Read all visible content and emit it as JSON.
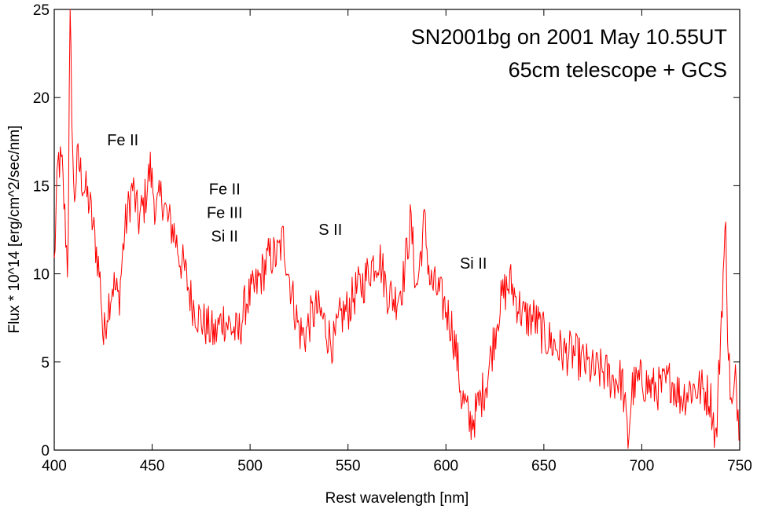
{
  "chart_data": {
    "type": "line",
    "title_lines": [
      "SN2001bg on 2001 May 10.55UT",
      "65cm telescope + GCS"
    ],
    "xlabel": "Rest wavelength [nm]",
    "ylabel": "Flux * 10^14 [erg/cm^2/sec/nm]",
    "xlim": [
      400,
      750
    ],
    "ylim": [
      0,
      25
    ],
    "xticks": [
      400,
      450,
      500,
      550,
      600,
      650,
      700,
      750
    ],
    "yticks": [
      0,
      5,
      10,
      15,
      20,
      25
    ],
    "grid": false,
    "line_color": "#ff0000",
    "annotations": [
      {
        "lines": [
          "Fe II"
        ],
        "x": 435,
        "y": 17.3
      },
      {
        "lines": [
          "Fe II",
          "Fe III",
          "Si  II"
        ],
        "x": 487,
        "y": 14.5
      },
      {
        "lines": [
          "S II"
        ],
        "x": 541,
        "y": 12.2
      },
      {
        "lines": [
          "Si II"
        ],
        "x": 614,
        "y": 10.3
      }
    ],
    "series": [
      {
        "x": [
          400,
          402,
          404,
          406,
          407,
          408,
          410,
          412,
          415,
          418,
          420,
          422,
          424,
          425,
          427,
          430,
          433,
          436,
          440,
          443,
          446,
          449,
          452,
          455,
          458,
          461,
          464,
          467,
          470,
          474,
          478,
          482,
          486,
          490,
          494,
          498,
          502,
          506,
          510,
          514,
          517,
          519,
          522,
          525,
          528,
          531,
          534,
          537,
          540,
          543,
          546,
          550,
          554,
          558,
          562,
          566,
          570,
          574,
          578,
          582,
          585,
          589,
          592,
          596,
          600,
          603,
          606,
          608,
          610,
          612,
          615,
          618,
          621,
          624,
          627,
          630,
          633,
          636,
          640,
          645,
          650,
          655,
          660,
          665,
          670,
          675,
          680,
          685,
          690,
          693,
          695,
          700,
          705,
          710,
          715,
          720,
          725,
          730,
          735,
          738,
          740,
          742,
          743,
          744,
          746,
          748,
          750
        ],
        "y": [
          10.5,
          16.5,
          16.0,
          12.0,
          10.0,
          25.0,
          14.0,
          16.5,
          15.0,
          14.0,
          12.5,
          11.0,
          9.0,
          6.0,
          8.0,
          9.5,
          8.5,
          12.5,
          15.0,
          13.0,
          14.0,
          16.0,
          13.5,
          14.5,
          13.0,
          12.5,
          11.0,
          10.0,
          8.5,
          7.5,
          7.0,
          6.5,
          7.5,
          7.0,
          6.5,
          8.5,
          9.0,
          10.0,
          11.0,
          11.0,
          12.0,
          10.5,
          8.5,
          6.8,
          6.5,
          7.5,
          8.0,
          7.5,
          6.5,
          6.0,
          7.5,
          8.0,
          9.0,
          9.5,
          10.5,
          11.0,
          9.0,
          8.5,
          9.5,
          13.0,
          9.0,
          13.0,
          9.5,
          9.0,
          8.0,
          7.0,
          5.0,
          3.0,
          2.5,
          1.5,
          2.0,
          3.0,
          4.0,
          6.0,
          8.0,
          9.0,
          9.5,
          8.5,
          7.5,
          7.5,
          6.5,
          6.0,
          5.5,
          5.5,
          5.0,
          4.5,
          4.5,
          4.0,
          4.0,
          0.5,
          3.5,
          4.0,
          3.5,
          3.5,
          4.0,
          3.0,
          3.5,
          3.5,
          3.0,
          0.5,
          6.0,
          11.0,
          12.5,
          6.0,
          2.0,
          4.0,
          1.0
        ]
      }
    ]
  }
}
